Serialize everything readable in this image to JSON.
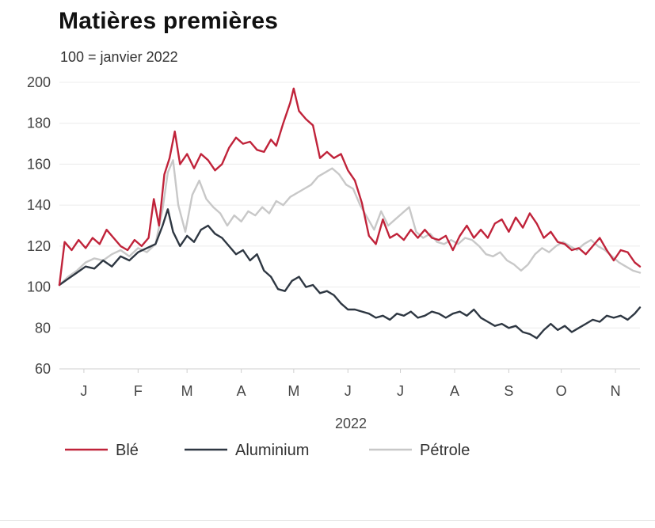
{
  "chart_data": {
    "type": "line",
    "title": "Matières premières",
    "subtitle": "100 = janvier 2022",
    "xlabel": "2022",
    "ylabel": "",
    "ylim": [
      60,
      200
    ],
    "yticks": [
      60,
      80,
      100,
      120,
      140,
      160,
      180,
      200
    ],
    "xlim": [
      "2022-01-01",
      "2022-11-29"
    ],
    "month_ticks": [
      {
        "label": "J",
        "date": "2022-01-15"
      },
      {
        "label": "F",
        "date": "2022-02-15"
      },
      {
        "label": "M",
        "date": "2022-03-15"
      },
      {
        "label": "A",
        "date": "2022-04-15"
      },
      {
        "label": "M",
        "date": "2022-05-15"
      },
      {
        "label": "J",
        "date": "2022-06-15"
      },
      {
        "label": "J",
        "date": "2022-07-15"
      },
      {
        "label": "A",
        "date": "2022-08-15"
      },
      {
        "label": "S",
        "date": "2022-09-15"
      },
      {
        "label": "O",
        "date": "2022-10-15"
      },
      {
        "label": "N",
        "date": "2022-11-15"
      }
    ],
    "grid": true,
    "legend_position": "bottom-left",
    "series": [
      {
        "name": "Blé",
        "color": "#c0233a",
        "points": [
          [
            "2022-01-01",
            101
          ],
          [
            "2022-01-04",
            122
          ],
          [
            "2022-01-08",
            118
          ],
          [
            "2022-01-12",
            123
          ],
          [
            "2022-01-16",
            119
          ],
          [
            "2022-01-20",
            124
          ],
          [
            "2022-01-24",
            121
          ],
          [
            "2022-01-28",
            128
          ],
          [
            "2022-02-01",
            124
          ],
          [
            "2022-02-05",
            120
          ],
          [
            "2022-02-09",
            118
          ],
          [
            "2022-02-13",
            123
          ],
          [
            "2022-02-17",
            120
          ],
          [
            "2022-02-21",
            124
          ],
          [
            "2022-02-24",
            143
          ],
          [
            "2022-02-27",
            130
          ],
          [
            "2022-03-02",
            155
          ],
          [
            "2022-03-05",
            163
          ],
          [
            "2022-03-08",
            176
          ],
          [
            "2022-03-11",
            160
          ],
          [
            "2022-03-15",
            165
          ],
          [
            "2022-03-19",
            158
          ],
          [
            "2022-03-23",
            165
          ],
          [
            "2022-03-27",
            162
          ],
          [
            "2022-03-31",
            157
          ],
          [
            "2022-04-04",
            160
          ],
          [
            "2022-04-08",
            168
          ],
          [
            "2022-04-12",
            173
          ],
          [
            "2022-04-16",
            170
          ],
          [
            "2022-04-20",
            171
          ],
          [
            "2022-04-24",
            167
          ],
          [
            "2022-04-28",
            166
          ],
          [
            "2022-05-02",
            172
          ],
          [
            "2022-05-05",
            169
          ],
          [
            "2022-05-09",
            180
          ],
          [
            "2022-05-13",
            190
          ],
          [
            "2022-05-15",
            197
          ],
          [
            "2022-05-18",
            186
          ],
          [
            "2022-05-22",
            182
          ],
          [
            "2022-05-26",
            179
          ],
          [
            "2022-05-30",
            163
          ],
          [
            "2022-06-03",
            166
          ],
          [
            "2022-06-07",
            163
          ],
          [
            "2022-06-11",
            165
          ],
          [
            "2022-06-15",
            157
          ],
          [
            "2022-06-19",
            152
          ],
          [
            "2022-06-23",
            141
          ],
          [
            "2022-06-27",
            125
          ],
          [
            "2022-07-01",
            121
          ],
          [
            "2022-07-05",
            133
          ],
          [
            "2022-07-09",
            124
          ],
          [
            "2022-07-13",
            126
          ],
          [
            "2022-07-17",
            123
          ],
          [
            "2022-07-21",
            128
          ],
          [
            "2022-07-25",
            124
          ],
          [
            "2022-07-29",
            128
          ],
          [
            "2022-08-02",
            124
          ],
          [
            "2022-08-06",
            123
          ],
          [
            "2022-08-10",
            125
          ],
          [
            "2022-08-14",
            118
          ],
          [
            "2022-08-18",
            125
          ],
          [
            "2022-08-22",
            130
          ],
          [
            "2022-08-26",
            124
          ],
          [
            "2022-08-30",
            128
          ],
          [
            "2022-09-03",
            124
          ],
          [
            "2022-09-07",
            131
          ],
          [
            "2022-09-11",
            133
          ],
          [
            "2022-09-15",
            127
          ],
          [
            "2022-09-19",
            134
          ],
          [
            "2022-09-23",
            129
          ],
          [
            "2022-09-27",
            136
          ],
          [
            "2022-10-01",
            131
          ],
          [
            "2022-10-05",
            124
          ],
          [
            "2022-10-09",
            127
          ],
          [
            "2022-10-13",
            122
          ],
          [
            "2022-10-17",
            121
          ],
          [
            "2022-10-21",
            118
          ],
          [
            "2022-10-25",
            119
          ],
          [
            "2022-10-29",
            116
          ],
          [
            "2022-11-02",
            120
          ],
          [
            "2022-11-06",
            124
          ],
          [
            "2022-11-10",
            118
          ],
          [
            "2022-11-14",
            113
          ],
          [
            "2022-11-18",
            118
          ],
          [
            "2022-11-22",
            117
          ],
          [
            "2022-11-26",
            112
          ],
          [
            "2022-11-29",
            110
          ]
        ]
      },
      {
        "name": "Aluminium",
        "color": "#2e3742",
        "points": [
          [
            "2022-01-01",
            101
          ],
          [
            "2022-01-06",
            104
          ],
          [
            "2022-01-11",
            107
          ],
          [
            "2022-01-16",
            110
          ],
          [
            "2022-01-21",
            109
          ],
          [
            "2022-01-26",
            113
          ],
          [
            "2022-01-31",
            110
          ],
          [
            "2022-02-05",
            115
          ],
          [
            "2022-02-10",
            113
          ],
          [
            "2022-02-15",
            117
          ],
          [
            "2022-02-20",
            119
          ],
          [
            "2022-02-25",
            121
          ],
          [
            "2022-03-01",
            130
          ],
          [
            "2022-03-04",
            138
          ],
          [
            "2022-03-07",
            127
          ],
          [
            "2022-03-11",
            120
          ],
          [
            "2022-03-15",
            125
          ],
          [
            "2022-03-19",
            122
          ],
          [
            "2022-03-23",
            128
          ],
          [
            "2022-03-27",
            130
          ],
          [
            "2022-03-31",
            126
          ],
          [
            "2022-04-04",
            124
          ],
          [
            "2022-04-08",
            120
          ],
          [
            "2022-04-12",
            116
          ],
          [
            "2022-04-16",
            118
          ],
          [
            "2022-04-20",
            113
          ],
          [
            "2022-04-24",
            116
          ],
          [
            "2022-04-28",
            108
          ],
          [
            "2022-05-02",
            105
          ],
          [
            "2022-05-06",
            99
          ],
          [
            "2022-05-10",
            98
          ],
          [
            "2022-05-14",
            103
          ],
          [
            "2022-05-18",
            105
          ],
          [
            "2022-05-22",
            100
          ],
          [
            "2022-05-26",
            101
          ],
          [
            "2022-05-30",
            97
          ],
          [
            "2022-06-03",
            98
          ],
          [
            "2022-06-07",
            96
          ],
          [
            "2022-06-11",
            92
          ],
          [
            "2022-06-15",
            89
          ],
          [
            "2022-06-19",
            89
          ],
          [
            "2022-06-23",
            88
          ],
          [
            "2022-06-27",
            87
          ],
          [
            "2022-07-01",
            85
          ],
          [
            "2022-07-05",
            86
          ],
          [
            "2022-07-09",
            84
          ],
          [
            "2022-07-13",
            87
          ],
          [
            "2022-07-17",
            86
          ],
          [
            "2022-07-21",
            88
          ],
          [
            "2022-07-25",
            85
          ],
          [
            "2022-07-29",
            86
          ],
          [
            "2022-08-02",
            88
          ],
          [
            "2022-08-06",
            87
          ],
          [
            "2022-08-10",
            85
          ],
          [
            "2022-08-14",
            87
          ],
          [
            "2022-08-18",
            88
          ],
          [
            "2022-08-22",
            86
          ],
          [
            "2022-08-26",
            89
          ],
          [
            "2022-08-30",
            85
          ],
          [
            "2022-09-03",
            83
          ],
          [
            "2022-09-07",
            81
          ],
          [
            "2022-09-11",
            82
          ],
          [
            "2022-09-15",
            80
          ],
          [
            "2022-09-19",
            81
          ],
          [
            "2022-09-23",
            78
          ],
          [
            "2022-09-27",
            77
          ],
          [
            "2022-10-01",
            75
          ],
          [
            "2022-10-05",
            79
          ],
          [
            "2022-10-09",
            82
          ],
          [
            "2022-10-13",
            79
          ],
          [
            "2022-10-17",
            81
          ],
          [
            "2022-10-21",
            78
          ],
          [
            "2022-10-25",
            80
          ],
          [
            "2022-10-29",
            82
          ],
          [
            "2022-11-02",
            84
          ],
          [
            "2022-11-06",
            83
          ],
          [
            "2022-11-10",
            86
          ],
          [
            "2022-11-14",
            85
          ],
          [
            "2022-11-18",
            86
          ],
          [
            "2022-11-22",
            84
          ],
          [
            "2022-11-26",
            87
          ],
          [
            "2022-11-29",
            90
          ]
        ]
      },
      {
        "name": "Pétrole",
        "color": "#c8c8c8",
        "points": [
          [
            "2022-01-01",
            101
          ],
          [
            "2022-01-06",
            105
          ],
          [
            "2022-01-11",
            108
          ],
          [
            "2022-01-16",
            112
          ],
          [
            "2022-01-21",
            114
          ],
          [
            "2022-01-26",
            113
          ],
          [
            "2022-01-31",
            116
          ],
          [
            "2022-02-05",
            118
          ],
          [
            "2022-02-10",
            115
          ],
          [
            "2022-02-15",
            119
          ],
          [
            "2022-02-20",
            117
          ],
          [
            "2022-02-25",
            121
          ],
          [
            "2022-03-01",
            138
          ],
          [
            "2022-03-04",
            156
          ],
          [
            "2022-03-07",
            162
          ],
          [
            "2022-03-10",
            140
          ],
          [
            "2022-03-14",
            127
          ],
          [
            "2022-03-18",
            145
          ],
          [
            "2022-03-22",
            152
          ],
          [
            "2022-03-26",
            143
          ],
          [
            "2022-03-30",
            139
          ],
          [
            "2022-04-03",
            136
          ],
          [
            "2022-04-07",
            130
          ],
          [
            "2022-04-11",
            135
          ],
          [
            "2022-04-15",
            132
          ],
          [
            "2022-04-19",
            137
          ],
          [
            "2022-04-23",
            135
          ],
          [
            "2022-04-27",
            139
          ],
          [
            "2022-05-01",
            136
          ],
          [
            "2022-05-05",
            142
          ],
          [
            "2022-05-09",
            140
          ],
          [
            "2022-05-13",
            144
          ],
          [
            "2022-05-17",
            146
          ],
          [
            "2022-05-21",
            148
          ],
          [
            "2022-05-25",
            150
          ],
          [
            "2022-05-29",
            154
          ],
          [
            "2022-06-02",
            156
          ],
          [
            "2022-06-06",
            158
          ],
          [
            "2022-06-10",
            155
          ],
          [
            "2022-06-14",
            150
          ],
          [
            "2022-06-18",
            148
          ],
          [
            "2022-06-22",
            140
          ],
          [
            "2022-06-26",
            134
          ],
          [
            "2022-06-30",
            128
          ],
          [
            "2022-07-04",
            137
          ],
          [
            "2022-07-08",
            130
          ],
          [
            "2022-07-12",
            133
          ],
          [
            "2022-07-16",
            136
          ],
          [
            "2022-07-20",
            139
          ],
          [
            "2022-07-24",
            127
          ],
          [
            "2022-07-28",
            124
          ],
          [
            "2022-08-01",
            126
          ],
          [
            "2022-08-05",
            122
          ],
          [
            "2022-08-09",
            121
          ],
          [
            "2022-08-13",
            123
          ],
          [
            "2022-08-17",
            121
          ],
          [
            "2022-08-21",
            124
          ],
          [
            "2022-08-25",
            123
          ],
          [
            "2022-08-29",
            120
          ],
          [
            "2022-09-02",
            116
          ],
          [
            "2022-09-06",
            115
          ],
          [
            "2022-09-10",
            117
          ],
          [
            "2022-09-14",
            113
          ],
          [
            "2022-09-18",
            111
          ],
          [
            "2022-09-22",
            108
          ],
          [
            "2022-09-26",
            111
          ],
          [
            "2022-09-30",
            116
          ],
          [
            "2022-10-04",
            119
          ],
          [
            "2022-10-08",
            117
          ],
          [
            "2022-10-12",
            120
          ],
          [
            "2022-10-16",
            122
          ],
          [
            "2022-10-20",
            120
          ],
          [
            "2022-10-24",
            118
          ],
          [
            "2022-10-28",
            121
          ],
          [
            "2022-11-01",
            123
          ],
          [
            "2022-11-05",
            120
          ],
          [
            "2022-11-09",
            118
          ],
          [
            "2022-11-13",
            115
          ],
          [
            "2022-11-17",
            112
          ],
          [
            "2022-11-21",
            110
          ],
          [
            "2022-11-25",
            108
          ],
          [
            "2022-11-29",
            107
          ]
        ]
      }
    ]
  }
}
